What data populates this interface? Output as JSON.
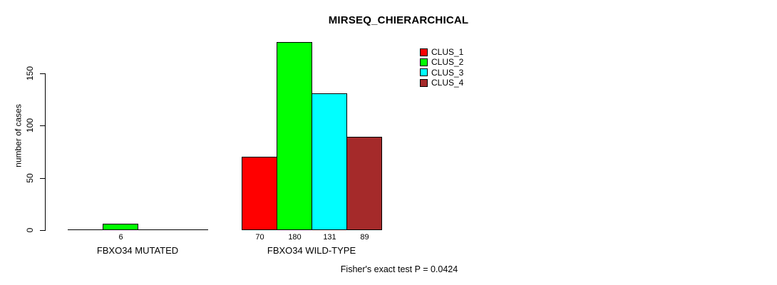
{
  "title": "MIRSEQ_CHIERARCHICAL",
  "ylabel": "number of cases",
  "footer": "Fisher's exact test P = 0.0424",
  "chart_data": {
    "type": "bar",
    "title": "MIRSEQ_CHIERARCHICAL",
    "xlabel": "",
    "ylabel": "number of cases",
    "ylim": [
      0,
      180
    ],
    "yticks": [
      0,
      50,
      100,
      150
    ],
    "grid": false,
    "legend_position": "top-right-inside",
    "categories": [
      "FBXO34 MUTATED",
      "FBXO34 WILD-TYPE"
    ],
    "series": [
      {
        "name": "CLUS_1",
        "color": "#FF0000",
        "values": [
          0,
          70
        ]
      },
      {
        "name": "CLUS_2",
        "color": "#00FF00",
        "values": [
          6,
          180
        ]
      },
      {
        "name": "CLUS_3",
        "color": "#00FFFF",
        "values": [
          0,
          131
        ]
      },
      {
        "name": "CLUS_4",
        "color": "#A52A2A",
        "values": [
          0,
          89
        ]
      }
    ],
    "bar_value_labels": [
      [
        "",
        "6",
        "",
        ""
      ],
      [
        "70",
        "180",
        "131",
        "89"
      ]
    ],
    "annotation": "Fisher's exact test P = 0.0424"
  }
}
